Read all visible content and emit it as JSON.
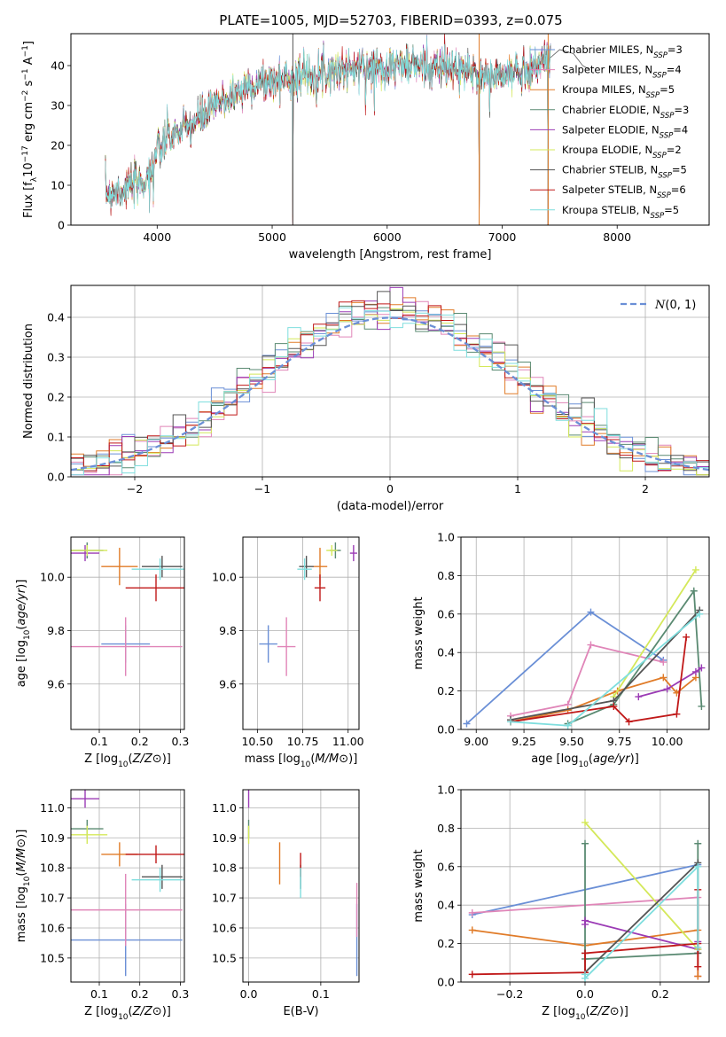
{
  "figure_title": "PLATE=1005, MJD=52703, FIBERID=0393, z=0.075",
  "colors": {
    "Chabrier MILES": "#6a8fd6",
    "Salpeter MILES": "#e085b8",
    "Kroupa MILES": "#e07b28",
    "Chabrier ELODIE": "#5a8a72",
    "Salpeter ELODIE": "#9b3bb5",
    "Kroupa ELODIE": "#d4e85a",
    "Chabrier STELIB": "#555555",
    "Salpeter STELIB": "#c01818",
    "Kroupa STELIB": "#7fdede"
  },
  "chart_data": [
    {
      "id": "spectrum",
      "type": "line",
      "title": "PLATE=1005, MJD=52703, FIBERID=0393, z=0.075",
      "xlabel": "wavelength [Angstrom, rest frame]",
      "ylabel": "Flux [f_λ 10^-17 erg cm^-2 s^-1 A^-1]",
      "xlim": [
        3250,
        8800
      ],
      "ylim": [
        0,
        48
      ],
      "xticks": [
        4000,
        5000,
        6000,
        7000,
        8000
      ],
      "yticks": [
        0,
        10,
        20,
        30,
        40
      ],
      "grid": false,
      "legend_position": "right",
      "legend": [
        {
          "label": "Chabrier MILES, N",
          "sub": "SSP",
          "suffix": "=3"
        },
        {
          "label": "Salpeter MILES, N",
          "sub": "SSP",
          "suffix": "=4"
        },
        {
          "label": "Kroupa MILES, N",
          "sub": "SSP",
          "suffix": "=5"
        },
        {
          "label": "Chabrier ELODIE, N",
          "sub": "SSP",
          "suffix": "=3"
        },
        {
          "label": "Salpeter ELODIE, N",
          "sub": "SSP",
          "suffix": "=4"
        },
        {
          "label": "Kroupa ELODIE, N",
          "sub": "SSP",
          "suffix": "=2"
        },
        {
          "label": "Chabrier STELIB, N",
          "sub": "SSP",
          "suffix": "=5"
        },
        {
          "label": "Salpeter STELIB, N",
          "sub": "SSP",
          "suffix": "=6"
        },
        {
          "label": "Kroupa STELIB, N",
          "sub": "SSP",
          "suffix": "=5"
        }
      ],
      "continuum": {
        "x": [
          3550,
          3700,
          3900,
          4000,
          4100,
          4300,
          4500,
          4800,
          5000,
          5300,
          5600,
          6000,
          6300,
          6600,
          6900,
          7100,
          7300,
          7420
        ],
        "y": [
          8,
          9,
          11,
          18,
          22,
          25,
          30,
          35,
          36,
          38,
          39,
          40,
          40,
          39,
          37,
          38,
          40,
          42
        ]
      },
      "features": [
        {
          "x": 5180,
          "y": 1
        },
        {
          "x": 5890,
          "y": 28
        },
        {
          "x": 3934,
          "y": 4
        },
        {
          "x": 3969,
          "y": 6
        },
        {
          "x": 6800,
          "y": 0
        },
        {
          "x": 7400,
          "y": 0
        },
        {
          "x": 6500,
          "y": 46
        },
        {
          "x": 7600,
          "y": 43
        }
      ]
    },
    {
      "id": "residuals",
      "type": "histogram",
      "xlabel": "(data-model)/error",
      "ylabel": "Normed distribution",
      "xlim": [
        -2.5,
        2.5
      ],
      "ylim": [
        0,
        0.48
      ],
      "xticks": [
        -2,
        -1,
        0,
        1,
        2
      ],
      "yticks": [
        0.0,
        0.1,
        0.2,
        0.3,
        0.4
      ],
      "grid": true,
      "legend_position": "top-right",
      "legend": [
        {
          "label": "N(0, 1)",
          "style": "dashed"
        }
      ],
      "bins": [
        -2.5,
        2.5,
        50
      ]
    },
    {
      "id": "Z_age",
      "type": "scatter",
      "xlabel": "Z [log10(Z/Z⊙)]",
      "ylabel": "age [log10(age/yr)]",
      "xlim": [
        0.03,
        0.31
      ],
      "ylim": [
        9.43,
        10.15
      ],
      "xticks": [
        0.1,
        0.2,
        0.3
      ],
      "yticks": [
        9.6,
        9.8,
        10.0
      ],
      "grid": true,
      "points": [
        {
          "series": "Chabrier MILES",
          "x": 0.165,
          "xerr": 0.06,
          "y": 9.75,
          "yerr": 0.07
        },
        {
          "series": "Salpeter MILES",
          "x": 0.165,
          "xerr": 0.14,
          "y": 9.74,
          "yerr": 0.11
        },
        {
          "series": "Kroupa MILES",
          "x": 0.15,
          "xerr": 0.045,
          "y": 10.04,
          "yerr": 0.07
        },
        {
          "series": "Chabrier ELODIE",
          "x": 0.07,
          "xerr": 0.04,
          "y": 10.1,
          "yerr": 0.03
        },
        {
          "series": "Salpeter ELODIE",
          "x": 0.065,
          "xerr": 0.035,
          "y": 10.09,
          "yerr": 0.03
        },
        {
          "series": "Kroupa ELODIE",
          "x": 0.07,
          "xerr": 0.05,
          "y": 10.1,
          "yerr": 0.02
        },
        {
          "series": "Chabrier STELIB",
          "x": 0.255,
          "xerr": 0.05,
          "y": 10.04,
          "yerr": 0.04
        },
        {
          "series": "Salpeter STELIB",
          "x": 0.24,
          "xerr": 0.075,
          "y": 9.96,
          "yerr": 0.05
        },
        {
          "series": "Kroupa STELIB",
          "x": 0.25,
          "xerr": 0.07,
          "y": 10.03,
          "yerr": 0.04
        }
      ]
    },
    {
      "id": "mass_age",
      "type": "scatter",
      "xlabel": "mass [log10(M/M⊙)]",
      "ylabel": "",
      "xlim": [
        10.42,
        11.06
      ],
      "ylim": [
        9.43,
        10.15
      ],
      "xticks": [
        10.5,
        10.75,
        11.0
      ],
      "yticks": [
        9.6,
        9.8,
        10.0
      ],
      "grid": true,
      "points": [
        {
          "series": "Chabrier MILES",
          "x": 10.56,
          "xerr": 0.05,
          "y": 9.75,
          "yerr": 0.07
        },
        {
          "series": "Salpeter MILES",
          "x": 10.66,
          "xerr": 0.05,
          "y": 9.74,
          "yerr": 0.11
        },
        {
          "series": "Kroupa MILES",
          "x": 10.845,
          "xerr": 0.04,
          "y": 10.04,
          "yerr": 0.07
        },
        {
          "series": "Chabrier ELODIE",
          "x": 10.93,
          "xerr": 0.03,
          "y": 10.1,
          "yerr": 0.03
        },
        {
          "series": "Salpeter ELODIE",
          "x": 11.03,
          "xerr": 0.02,
          "y": 10.09,
          "yerr": 0.03
        },
        {
          "series": "Kroupa ELODIE",
          "x": 10.91,
          "xerr": 0.03,
          "y": 10.1,
          "yerr": 0.02
        },
        {
          "series": "Chabrier STELIB",
          "x": 10.77,
          "xerr": 0.04,
          "y": 10.04,
          "yerr": 0.04
        },
        {
          "series": "Salpeter STELIB",
          "x": 10.845,
          "xerr": 0.03,
          "y": 9.96,
          "yerr": 0.05
        },
        {
          "series": "Kroupa STELIB",
          "x": 10.76,
          "xerr": 0.04,
          "y": 10.03,
          "yerr": 0.04
        }
      ]
    },
    {
      "id": "age_weight",
      "type": "line",
      "xlabel": "age [log10(age/yr)]",
      "ylabel": "mass weight",
      "xlim": [
        8.92,
        10.22
      ],
      "ylim": [
        0.0,
        1.0
      ],
      "xticks": [
        9.0,
        9.25,
        9.5,
        9.75,
        10.0
      ],
      "yticks": [
        0.0,
        0.2,
        0.4,
        0.6,
        0.8,
        1.0
      ],
      "grid": true,
      "series": [
        {
          "name": "Chabrier MILES",
          "x": [
            8.95,
            9.6,
            9.98
          ],
          "y": [
            0.03,
            0.61,
            0.36
          ]
        },
        {
          "name": "Salpeter MILES",
          "x": [
            9.18,
            9.48,
            9.6,
            9.98
          ],
          "y": [
            0.07,
            0.13,
            0.44,
            0.35
          ]
        },
        {
          "name": "Kroupa MILES",
          "x": [
            9.18,
            9.48,
            9.74,
            9.98,
            10.05,
            10.15
          ],
          "y": [
            0.04,
            0.1,
            0.2,
            0.27,
            0.19,
            0.27
          ]
        },
        {
          "name": "Chabrier ELODIE",
          "x": [
            9.48,
            9.72,
            10.14,
            10.18
          ],
          "y": [
            0.03,
            0.13,
            0.72,
            0.12
          ]
        },
        {
          "name": "Salpeter ELODIE",
          "x": [
            9.85,
            10.0,
            10.15,
            10.18
          ],
          "y": [
            0.17,
            0.21,
            0.3,
            0.32
          ]
        },
        {
          "name": "Kroupa ELODIE",
          "x": [
            9.72,
            10.15
          ],
          "y": [
            0.17,
            0.83
          ]
        },
        {
          "name": "Chabrier STELIB",
          "x": [
            9.18,
            9.72,
            10.17
          ],
          "y": [
            0.05,
            0.15,
            0.62
          ]
        },
        {
          "name": "Salpeter STELIB",
          "x": [
            9.18,
            9.72,
            9.8,
            10.05,
            10.1
          ],
          "y": [
            0.04,
            0.12,
            0.04,
            0.08,
            0.48
          ]
        },
        {
          "name": "Kroupa STELIB",
          "x": [
            9.18,
            9.48,
            10.17
          ],
          "y": [
            0.04,
            0.02,
            0.6
          ]
        }
      ]
    },
    {
      "id": "Z_mass",
      "type": "scatter",
      "xlabel": "Z [log10(Z/Z⊙)]",
      "ylabel": "mass [log10(M/M⊙)]",
      "xlim": [
        0.03,
        0.31
      ],
      "ylim": [
        10.42,
        11.06
      ],
      "xticks": [
        0.1,
        0.2,
        0.3
      ],
      "yticks": [
        10.5,
        10.6,
        10.7,
        10.8,
        10.9,
        11.0
      ],
      "grid": true,
      "points": [
        {
          "series": "Chabrier MILES",
          "x": 0.165,
          "xerr": 0.14,
          "y": 10.56,
          "yerr": 0.12
        },
        {
          "series": "Salpeter MILES",
          "x": 0.165,
          "xerr": 0.14,
          "y": 10.66,
          "yerr": 0.12
        },
        {
          "series": "Kroupa MILES",
          "x": 0.15,
          "xerr": 0.045,
          "y": 10.845,
          "yerr": 0.04
        },
        {
          "series": "Chabrier ELODIE",
          "x": 0.07,
          "xerr": 0.04,
          "y": 10.93,
          "yerr": 0.03
        },
        {
          "series": "Salpeter ELODIE",
          "x": 0.065,
          "xerr": 0.035,
          "y": 11.03,
          "yerr": 0.03
        },
        {
          "series": "Kroupa ELODIE",
          "x": 0.07,
          "xerr": 0.05,
          "y": 10.91,
          "yerr": 0.03
        },
        {
          "series": "Chabrier STELIB",
          "x": 0.255,
          "xerr": 0.05,
          "y": 10.77,
          "yerr": 0.04
        },
        {
          "series": "Salpeter STELIB",
          "x": 0.24,
          "xerr": 0.075,
          "y": 10.845,
          "yerr": 0.03
        },
        {
          "series": "Kroupa STELIB",
          "x": 0.25,
          "xerr": 0.07,
          "y": 10.76,
          "yerr": 0.04
        }
      ]
    },
    {
      "id": "EBV_mass",
      "type": "scatter",
      "xlabel": "E(B-V)",
      "ylabel": "",
      "xlim": [
        -0.008,
        0.153
      ],
      "ylim": [
        10.42,
        11.06
      ],
      "xticks": [
        0.0,
        0.1
      ],
      "yticks": [
        10.5,
        10.6,
        10.7,
        10.8,
        10.9,
        11.0
      ],
      "grid": true,
      "points": [
        {
          "series": "Chabrier MILES",
          "x": 0.15,
          "xerr": 0,
          "y": 10.56,
          "yerr": 0.12
        },
        {
          "series": "Salpeter MILES",
          "x": 0.15,
          "xerr": 0,
          "y": 10.66,
          "yerr": 0.09
        },
        {
          "series": "Kroupa MILES",
          "x": 0.043,
          "xerr": 0,
          "y": 10.815,
          "yerr": 0.07
        },
        {
          "series": "Chabrier ELODIE",
          "x": 0.0,
          "xerr": 0,
          "y": 10.93,
          "yerr": 0.03
        },
        {
          "series": "Salpeter ELODIE",
          "x": 0.0,
          "xerr": 0,
          "y": 11.03,
          "yerr": 0.03
        },
        {
          "series": "Kroupa ELODIE",
          "x": 0.0,
          "xerr": 0,
          "y": 10.91,
          "yerr": 0.03
        },
        {
          "series": "Chabrier STELIB",
          "x": 0.072,
          "xerr": 0,
          "y": 10.77,
          "yerr": 0.04
        },
        {
          "series": "Salpeter STELIB",
          "x": 0.072,
          "xerr": 0,
          "y": 10.81,
          "yerr": 0.04
        },
        {
          "series": "Kroupa STELIB",
          "x": 0.072,
          "xerr": 0,
          "y": 10.75,
          "yerr": 0.05
        }
      ]
    },
    {
      "id": "Z_weight",
      "type": "line",
      "xlabel": "Z [log10(Z/Z⊙)]",
      "ylabel": "mass weight",
      "xlim": [
        -0.33,
        0.33
      ],
      "ylim": [
        0.0,
        1.0
      ],
      "xticks": [
        -0.2,
        0.0,
        0.2
      ],
      "yticks": [
        0.0,
        0.2,
        0.4,
        0.6,
        0.8,
        1.0
      ],
      "grid": true,
      "series": [
        {
          "name": "Chabrier MILES",
          "x": [
            -0.3,
            0.3
          ],
          "y": [
            0.35,
            0.61
          ]
        },
        {
          "name": "Salpeter MILES",
          "x": [
            -0.3,
            0.3,
            0.3
          ],
          "y": [
            0.36,
            0.44,
            0.03
          ]
        },
        {
          "name": "Kroupa MILES",
          "x": [
            -0.3,
            0.0,
            0.3,
            0.3
          ],
          "y": [
            0.27,
            0.19,
            0.27,
            0.03
          ]
        },
        {
          "name": "Chabrier ELODIE",
          "x": [
            0.0,
            0.0,
            0.3,
            0.3
          ],
          "y": [
            0.72,
            0.12,
            0.15,
            0.72
          ]
        },
        {
          "name": "Salpeter ELODIE",
          "x": [
            0.0,
            0.0,
            0.3,
            0.3
          ],
          "y": [
            0.3,
            0.32,
            0.17,
            0.21
          ]
        },
        {
          "name": "Kroupa ELODIE",
          "x": [
            0.0,
            0.3
          ],
          "y": [
            0.83,
            0.17
          ]
        },
        {
          "name": "Chabrier STELIB",
          "x": [
            0.0,
            0.0,
            0.3,
            0.3
          ],
          "y": [
            0.15,
            0.05,
            0.62,
            0.15
          ]
        },
        {
          "name": "Salpeter STELIB",
          "x": [
            -0.3,
            0.0,
            0.0,
            0.3,
            0.3,
            0.3
          ],
          "y": [
            0.04,
            0.05,
            0.15,
            0.2,
            0.48,
            0.08
          ]
        },
        {
          "name": "Kroupa STELIB",
          "x": [
            0.0,
            0.0,
            0.3,
            0.3
          ],
          "y": [
            0.04,
            0.02,
            0.6,
            0.18
          ]
        }
      ]
    }
  ]
}
